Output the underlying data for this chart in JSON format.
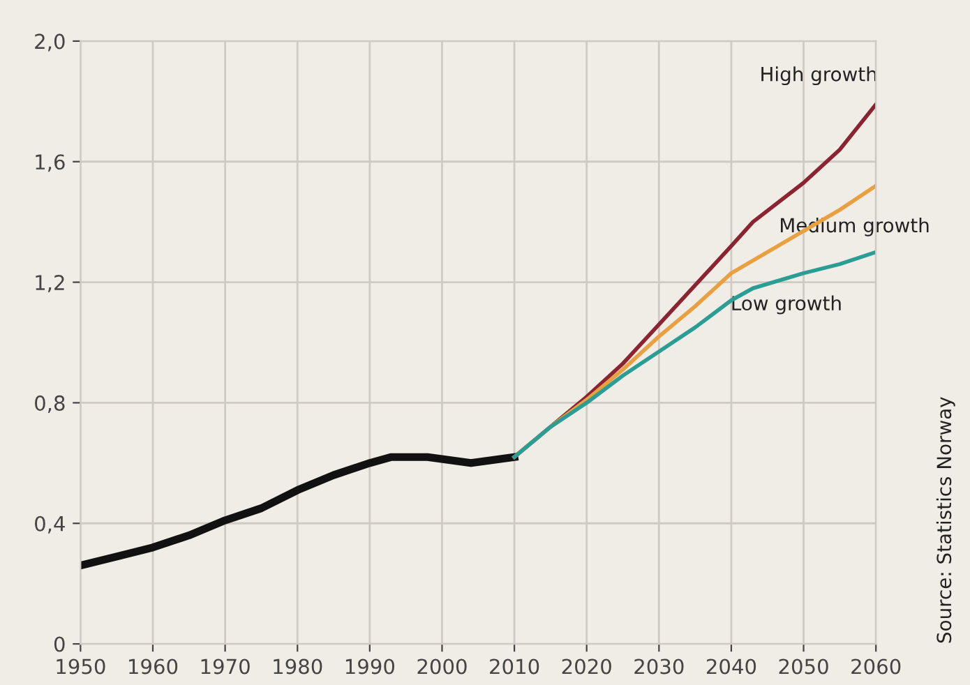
{
  "chart_data": {
    "type": "line",
    "xlim": [
      1950,
      2060
    ],
    "ylim": [
      0,
      2.0
    ],
    "xticks": [
      1950,
      1960,
      1970,
      1980,
      1990,
      2000,
      2010,
      2020,
      2030,
      2040,
      2050,
      2060
    ],
    "yticks": [
      {
        "value": 0,
        "label": "0"
      },
      {
        "value": 0.4,
        "label": "0,4"
      },
      {
        "value": 0.8,
        "label": "0,8"
      },
      {
        "value": 1.2,
        "label": "1,2"
      },
      {
        "value": 1.6,
        "label": "1,6"
      },
      {
        "value": 2.0,
        "label": "2,0"
      }
    ],
    "grid": true,
    "legend": false,
    "line_style": "solid",
    "marker": "none",
    "annotations": [
      "Source: Statistics Norway"
    ],
    "series": [
      {
        "color": "#111111",
        "x": [
          1950,
          1955,
          1960,
          1965,
          1970,
          1975,
          1980,
          1985,
          1990,
          1993,
          1998,
          2001,
          2004,
          2007,
          2010
        ],
        "values": [
          0.26,
          0.29,
          0.32,
          0.36,
          0.41,
          0.45,
          0.51,
          0.56,
          0.6,
          0.62,
          0.62,
          0.61,
          0.6,
          0.61,
          0.62
        ]
      },
      {
        "name": "High growth",
        "color": "#8b2330",
        "x": [
          2010,
          2015,
          2020,
          2025,
          2030,
          2035,
          2040,
          2043,
          2050,
          2055,
          2060
        ],
        "values": [
          0.62,
          0.72,
          0.82,
          0.93,
          1.06,
          1.19,
          1.32,
          1.4,
          1.53,
          1.64,
          1.79
        ]
      },
      {
        "name": "Medium growth",
        "color": "#e8a040",
        "x": [
          2010,
          2015,
          2020,
          2025,
          2030,
          2035,
          2040,
          2045,
          2050,
          2055,
          2060
        ],
        "values": [
          0.62,
          0.72,
          0.81,
          0.91,
          1.02,
          1.12,
          1.23,
          1.3,
          1.37,
          1.44,
          1.52
        ]
      },
      {
        "name": "Low growth",
        "color": "#2a9d95",
        "x": [
          2010,
          2015,
          2020,
          2025,
          2030,
          2035,
          2040,
          2043,
          2050,
          2055,
          2060
        ],
        "values": [
          0.62,
          0.72,
          0.8,
          0.89,
          0.97,
          1.05,
          1.14,
          1.18,
          1.23,
          1.26,
          1.3
        ]
      }
    ]
  }
}
